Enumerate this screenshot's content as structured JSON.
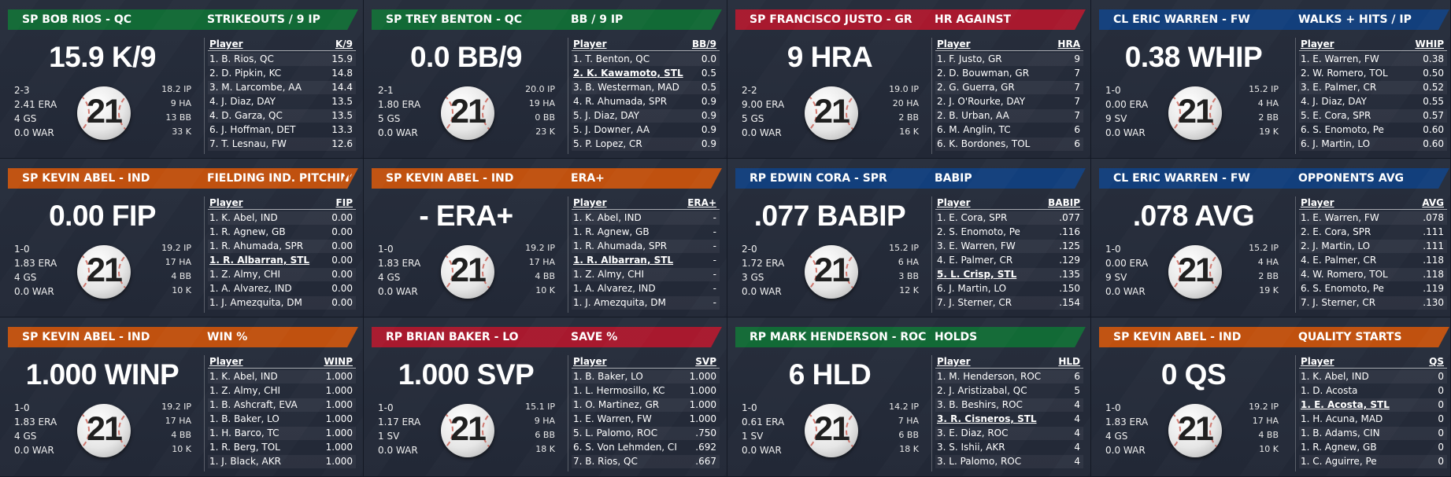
{
  "colors": {
    "green": "#126a36",
    "blue": "#123f7c",
    "red": "#a8192e",
    "orange": "#c0510f"
  },
  "cards": [
    {
      "color": "#126a36",
      "header_left": "SP BOB RIOS - QC",
      "header_right": "STRIKEOUTS / 9 IP",
      "big": "15.9 K/9",
      "left_stats": [
        "2-3",
        "2.41 ERA",
        "4 GS",
        "0.0 WAR"
      ],
      "right_stats": [
        "18.2 IP",
        "9 HA",
        "13 BB",
        "33 K"
      ],
      "ball": "21",
      "icon": "baseball-21-logo",
      "col_player": "Player",
      "col_stat": "K/9",
      "rows": [
        {
          "name": "1. B. Rios, QC",
          "value": "15.9",
          "hl": false
        },
        {
          "name": "2. D. Pipkin, KC",
          "value": "14.8",
          "hl": false
        },
        {
          "name": "3. M. Larcombe, AA",
          "value": "14.4",
          "hl": false
        },
        {
          "name": "4. J. Diaz, DAY",
          "value": "13.5",
          "hl": false
        },
        {
          "name": "4. D. Garza, QC",
          "value": "13.5",
          "hl": false
        },
        {
          "name": "6. J. Hoffman, DET",
          "value": "13.3",
          "hl": false
        },
        {
          "name": "7. T. Lesnau, FW",
          "value": "12.6",
          "hl": false
        }
      ]
    },
    {
      "color": "#126a36",
      "header_left": "SP TREY BENTON - QC",
      "header_right": "BB / 9 IP",
      "big": "0.0 BB/9",
      "left_stats": [
        "2-1",
        "1.80 ERA",
        "5 GS",
        "0.0 WAR"
      ],
      "right_stats": [
        "20.0 IP",
        "19 HA",
        "0 BB",
        "23 K"
      ],
      "ball": "21",
      "icon": "baseball-21-logo",
      "col_player": "Player",
      "col_stat": "BB/9",
      "rows": [
        {
          "name": "1. T. Benton, QC",
          "value": "0.0",
          "hl": false
        },
        {
          "name": "2. K. Kawamoto, STL",
          "value": "0.5",
          "hl": true
        },
        {
          "name": "3. B. Westerman, MAD",
          "value": "0.5",
          "hl": false
        },
        {
          "name": "4. R. Ahumada, SPR",
          "value": "0.9",
          "hl": false
        },
        {
          "name": "5. J. Diaz, DAY",
          "value": "0.9",
          "hl": false
        },
        {
          "name": "5. J. Downer, AA",
          "value": "0.9",
          "hl": false
        },
        {
          "name": "5. P. Lopez, CR",
          "value": "0.9",
          "hl": false
        }
      ]
    },
    {
      "color": "#a8192e",
      "header_left": "SP FRANCISCO JUSTO - GR",
      "header_right": "HR AGAINST",
      "big": "9 HRA",
      "left_stats": [
        "2-2",
        "9.00 ERA",
        "5 GS",
        "0.0 WAR"
      ],
      "right_stats": [
        "19.0 IP",
        "20 HA",
        "2 BB",
        "16 K"
      ],
      "ball": "21",
      "icon": "baseball-21-logo",
      "col_player": "Player",
      "col_stat": "HRA",
      "rows": [
        {
          "name": "1. F. Justo, GR",
          "value": "9",
          "hl": false
        },
        {
          "name": "2. D. Bouwman, GR",
          "value": "7",
          "hl": false
        },
        {
          "name": "2. G. Guerra, GR",
          "value": "7",
          "hl": false
        },
        {
          "name": "2. J. O'Rourke, DAY",
          "value": "7",
          "hl": false
        },
        {
          "name": "2. B. Urban, AA",
          "value": "7",
          "hl": false
        },
        {
          "name": "6. M. Anglin, TC",
          "value": "6",
          "hl": false
        },
        {
          "name": "6. K. Bordones, TOL",
          "value": "6",
          "hl": false
        }
      ]
    },
    {
      "color": "#123f7c",
      "header_left": "CL ERIC WARREN - FW",
      "header_right": "WALKS + HITS / IP",
      "big": "0.38 WHIP",
      "left_stats": [
        "1-0",
        "0.00 ERA",
        "9 SV",
        "0.0 WAR"
      ],
      "right_stats": [
        "15.2 IP",
        "4 HA",
        "2 BB",
        "19 K"
      ],
      "ball": "21",
      "icon": "baseball-21-logo",
      "col_player": "Player",
      "col_stat": "WHIP",
      "rows": [
        {
          "name": "1. E. Warren, FW",
          "value": "0.38",
          "hl": false
        },
        {
          "name": "2. W. Romero, TOL",
          "value": "0.50",
          "hl": false
        },
        {
          "name": "3. E. Palmer, CR",
          "value": "0.52",
          "hl": false
        },
        {
          "name": "4. J. Diaz, DAY",
          "value": "0.55",
          "hl": false
        },
        {
          "name": "5. E. Cora, SPR",
          "value": "0.57",
          "hl": false
        },
        {
          "name": "6. S. Enomoto, Pe",
          "value": "0.60",
          "hl": false
        },
        {
          "name": "6. J. Martin, LO",
          "value": "0.60",
          "hl": false
        }
      ]
    },
    {
      "color": "#c0510f",
      "header_left": "SP KEVIN ABEL - IND",
      "header_right": "FIELDING IND. PITCHING",
      "big": "0.00 FIP",
      "left_stats": [
        "1-0",
        "1.83 ERA",
        "4 GS",
        "0.0 WAR"
      ],
      "right_stats": [
        "19.2 IP",
        "17 HA",
        "4 BB",
        "10 K"
      ],
      "ball": "21",
      "icon": "baseball-21-logo",
      "col_player": "Player",
      "col_stat": "FIP",
      "rows": [
        {
          "name": "1. K. Abel, IND",
          "value": "0.00",
          "hl": false
        },
        {
          "name": "1. R. Agnew, GB",
          "value": "0.00",
          "hl": false
        },
        {
          "name": "1. R. Ahumada, SPR",
          "value": "0.00",
          "hl": false
        },
        {
          "name": "1. R. Albarran, STL",
          "value": "0.00",
          "hl": true
        },
        {
          "name": "1. Z. Almy, CHI",
          "value": "0.00",
          "hl": false
        },
        {
          "name": "1. A. Alvarez, IND",
          "value": "0.00",
          "hl": false
        },
        {
          "name": "1. J. Amezquita, DM",
          "value": "0.00",
          "hl": false
        }
      ]
    },
    {
      "color": "#c0510f",
      "header_left": "SP KEVIN ABEL - IND",
      "header_right": "ERA+",
      "big": "- ERA+",
      "left_stats": [
        "1-0",
        "1.83 ERA",
        "4 GS",
        "0.0 WAR"
      ],
      "right_stats": [
        "19.2 IP",
        "17 HA",
        "4 BB",
        "10 K"
      ],
      "ball": "21",
      "icon": "baseball-21-logo",
      "col_player": "Player",
      "col_stat": "ERA+",
      "rows": [
        {
          "name": "1. K. Abel, IND",
          "value": "-",
          "hl": false
        },
        {
          "name": "1. R. Agnew, GB",
          "value": "-",
          "hl": false
        },
        {
          "name": "1. R. Ahumada, SPR",
          "value": "-",
          "hl": false
        },
        {
          "name": "1. R. Albarran, STL",
          "value": "-",
          "hl": true
        },
        {
          "name": "1. Z. Almy, CHI",
          "value": "-",
          "hl": false
        },
        {
          "name": "1. A. Alvarez, IND",
          "value": "-",
          "hl": false
        },
        {
          "name": "1. J. Amezquita, DM",
          "value": "-",
          "hl": false
        }
      ]
    },
    {
      "color": "#123f7c",
      "header_left": "RP EDWIN CORA - SPR",
      "header_right": "BABIP",
      "big": ".077 BABIP",
      "left_stats": [
        "2-0",
        "1.72 ERA",
        "3 GS",
        "0.0 WAR"
      ],
      "right_stats": [
        "15.2 IP",
        "6 HA",
        "3 BB",
        "12 K"
      ],
      "ball": "21",
      "icon": "baseball-21-logo",
      "col_player": "Player",
      "col_stat": "BABIP",
      "rows": [
        {
          "name": "1. E. Cora, SPR",
          "value": ".077",
          "hl": false
        },
        {
          "name": "2. S. Enomoto, Pe",
          "value": ".116",
          "hl": false
        },
        {
          "name": "3. E. Warren, FW",
          "value": ".125",
          "hl": false
        },
        {
          "name": "4. E. Palmer, CR",
          "value": ".129",
          "hl": false
        },
        {
          "name": "5. L. Crisp, STL",
          "value": ".135",
          "hl": true
        },
        {
          "name": "6. J. Martin, LO",
          "value": ".150",
          "hl": false
        },
        {
          "name": "7. J. Sterner, CR",
          "value": ".154",
          "hl": false
        }
      ]
    },
    {
      "color": "#123f7c",
      "header_left": "CL ERIC WARREN - FW",
      "header_right": "OPPONENTS AVG",
      "big": ".078 AVG",
      "left_stats": [
        "1-0",
        "0.00 ERA",
        "9 SV",
        "0.0 WAR"
      ],
      "right_stats": [
        "15.2 IP",
        "4 HA",
        "2 BB",
        "19 K"
      ],
      "ball": "21",
      "icon": "baseball-21-logo",
      "col_player": "Player",
      "col_stat": "AVG",
      "rows": [
        {
          "name": "1. E. Warren, FW",
          "value": ".078",
          "hl": false
        },
        {
          "name": "2. E. Cora, SPR",
          "value": ".111",
          "hl": false
        },
        {
          "name": "2. J. Martin, LO",
          "value": ".111",
          "hl": false
        },
        {
          "name": "4. E. Palmer, CR",
          "value": ".118",
          "hl": false
        },
        {
          "name": "4. W. Romero, TOL",
          "value": ".118",
          "hl": false
        },
        {
          "name": "6. S. Enomoto, Pe",
          "value": ".119",
          "hl": false
        },
        {
          "name": "7. J. Sterner, CR",
          "value": ".130",
          "hl": false
        }
      ]
    },
    {
      "color": "#c0510f",
      "header_left": "SP KEVIN ABEL - IND",
      "header_right": "WIN %",
      "big": "1.000 WINP",
      "left_stats": [
        "1-0",
        "1.83 ERA",
        "4 GS",
        "0.0 WAR"
      ],
      "right_stats": [
        "19.2 IP",
        "17 HA",
        "4 BB",
        "10 K"
      ],
      "ball": "21",
      "icon": "baseball-21-logo",
      "col_player": "Player",
      "col_stat": "WINP",
      "rows": [
        {
          "name": "1. K. Abel, IND",
          "value": "1.000",
          "hl": false
        },
        {
          "name": "1. Z. Almy, CHI",
          "value": "1.000",
          "hl": false
        },
        {
          "name": "1. B. Ashcraft, EVA",
          "value": "1.000",
          "hl": false
        },
        {
          "name": "1. B. Baker, LO",
          "value": "1.000",
          "hl": false
        },
        {
          "name": "1. H. Barco, TC",
          "value": "1.000",
          "hl": false
        },
        {
          "name": "1. R. Berg, TOL",
          "value": "1.000",
          "hl": false
        },
        {
          "name": "1. J. Black, AKR",
          "value": "1.000",
          "hl": false
        }
      ]
    },
    {
      "color": "#a8192e",
      "header_left": "RP BRIAN BAKER - LO",
      "header_right": "SAVE %",
      "big": "1.000 SVP",
      "left_stats": [
        "1-0",
        "1.17 ERA",
        "1 SV",
        "0.0 WAR"
      ],
      "right_stats": [
        "15.1 IP",
        "9 HA",
        "6 BB",
        "18 K"
      ],
      "ball": "21",
      "icon": "baseball-21-logo",
      "col_player": "Player",
      "col_stat": "SVP",
      "rows": [
        {
          "name": "1. B. Baker, LO",
          "value": "1.000",
          "hl": false
        },
        {
          "name": "1. L. Hermosillo, KC",
          "value": "1.000",
          "hl": false
        },
        {
          "name": "1. O. Martinez, GR",
          "value": "1.000",
          "hl": false
        },
        {
          "name": "1. E. Warren, FW",
          "value": "1.000",
          "hl": false
        },
        {
          "name": "5. L. Palomo, ROC",
          "value": ".750",
          "hl": false
        },
        {
          "name": "6. S. Von Lehmden, CI",
          "value": ".692",
          "hl": false
        },
        {
          "name": "7. B. Rios, QC",
          "value": ".667",
          "hl": false
        }
      ]
    },
    {
      "color": "#126a36",
      "header_left": "RP MARK HENDERSON - ROC",
      "header_right": "HOLDS",
      "big": "6 HLD",
      "left_stats": [
        "1-0",
        "0.61 ERA",
        "1 SV",
        "0.0 WAR"
      ],
      "right_stats": [
        "14.2 IP",
        "7 HA",
        "6 BB",
        "18 K"
      ],
      "ball": "21",
      "icon": "baseball-21-logo",
      "col_player": "Player",
      "col_stat": "HLD",
      "rows": [
        {
          "name": "1. M. Henderson, ROC",
          "value": "6",
          "hl": false
        },
        {
          "name": "2. J. Aristizabal, QC",
          "value": "5",
          "hl": false
        },
        {
          "name": "3. B. Beshirs, ROC",
          "value": "4",
          "hl": false
        },
        {
          "name": "3. R. Cisneros, STL",
          "value": "4",
          "hl": true
        },
        {
          "name": "3. E. Diaz, ROC",
          "value": "4",
          "hl": false
        },
        {
          "name": "3. S. Ishii, AKR",
          "value": "4",
          "hl": false
        },
        {
          "name": "3. L. Palomo, ROC",
          "value": "4",
          "hl": false
        }
      ]
    },
    {
      "color": "#c0510f",
      "header_left": "SP KEVIN ABEL - IND",
      "header_right": "QUALITY STARTS",
      "big": "0 QS",
      "left_stats": [
        "1-0",
        "1.83 ERA",
        "4 GS",
        "0.0 WAR"
      ],
      "right_stats": [
        "19.2 IP",
        "17 HA",
        "4 BB",
        "10 K"
      ],
      "ball": "21",
      "icon": "baseball-21-logo",
      "col_player": "Player",
      "col_stat": "QS",
      "rows": [
        {
          "name": "1. K. Abel, IND",
          "value": "0",
          "hl": false
        },
        {
          "name": "1. D. Acosta",
          "value": "0",
          "hl": false
        },
        {
          "name": "1. E. Acosta, STL",
          "value": "0",
          "hl": true
        },
        {
          "name": "1. H. Acuna, MAD",
          "value": "0",
          "hl": false
        },
        {
          "name": "1. B. Adams, CIN",
          "value": "0",
          "hl": false
        },
        {
          "name": "1. R. Agnew, GB",
          "value": "0",
          "hl": false
        },
        {
          "name": "1. C. Aguirre, Pe",
          "value": "0",
          "hl": false
        }
      ]
    }
  ]
}
